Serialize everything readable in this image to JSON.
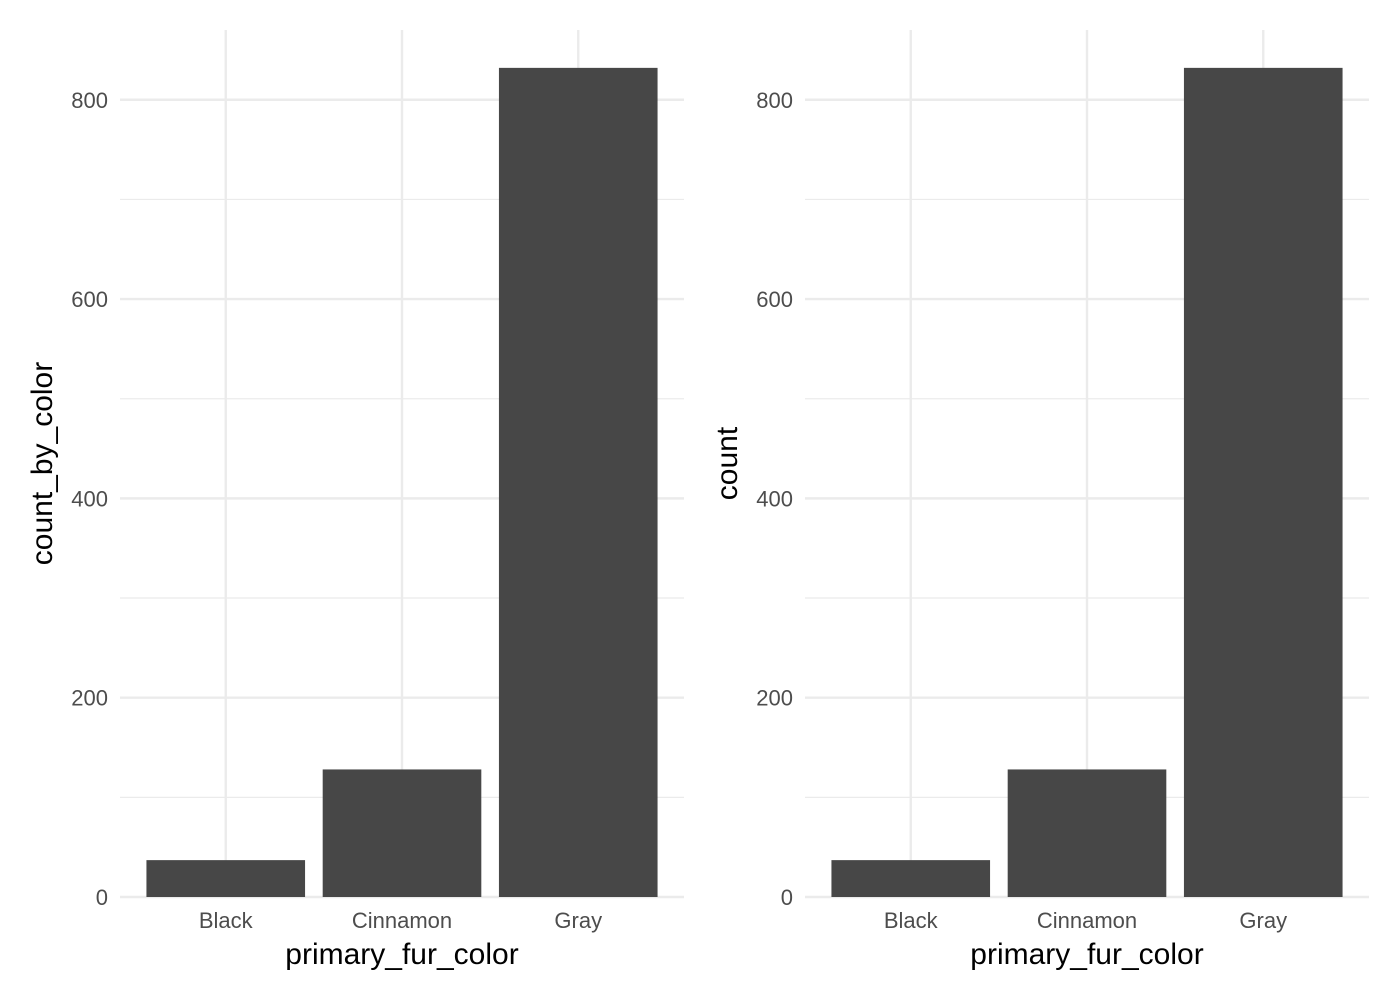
{
  "chart_data": [
    {
      "type": "bar",
      "categories": [
        "Black",
        "Cinnamon",
        "Gray"
      ],
      "values": [
        37,
        128,
        832
      ],
      "title": "",
      "xlabel": "primary_fur_color",
      "ylabel": "count_by_color",
      "ylim": [
        0,
        870
      ],
      "yticks": [
        0,
        200,
        400,
        600,
        800
      ],
      "grid": true,
      "bar_color": "#474747",
      "grid_color": "#ebebeb"
    },
    {
      "type": "bar",
      "categories": [
        "Black",
        "Cinnamon",
        "Gray"
      ],
      "values": [
        37,
        128,
        832
      ],
      "title": "",
      "xlabel": "primary_fur_color",
      "ylabel": "count",
      "ylim": [
        0,
        870
      ],
      "yticks": [
        0,
        200,
        400,
        600,
        800
      ],
      "grid": true,
      "bar_color": "#474747",
      "grid_color": "#ebebeb"
    }
  ]
}
